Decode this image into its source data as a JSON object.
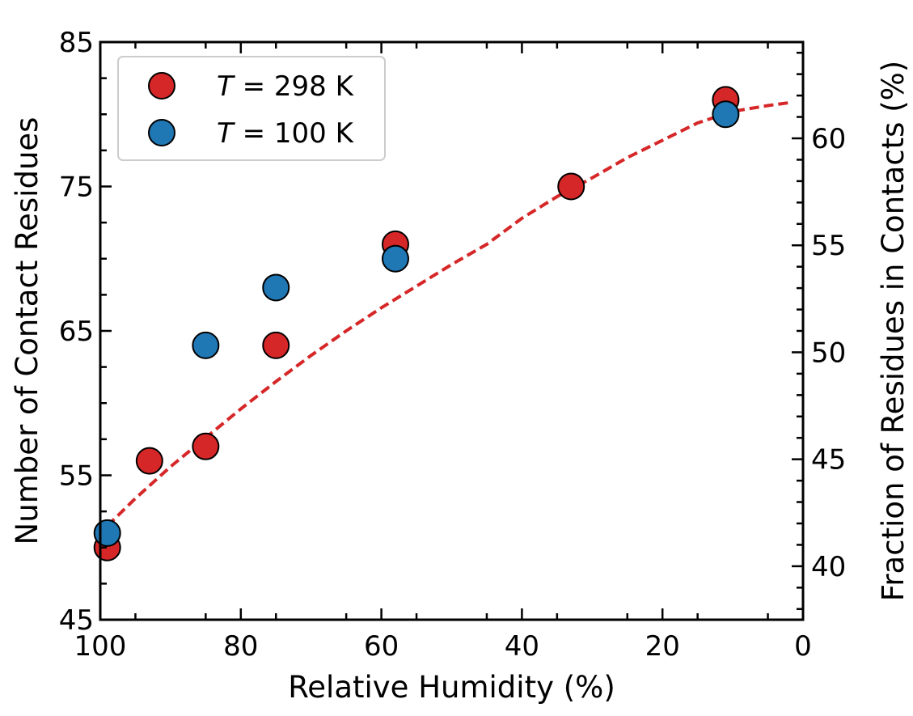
{
  "chart_data": {
    "type": "scatter",
    "xlabel": "Relative Humidity (%)",
    "ylabel": "Number of Contact Residues",
    "ylabel_right": "Fraction of Residues in Contacts (%)",
    "xlim": [
      100,
      0
    ],
    "ylim": [
      45,
      85
    ],
    "ylim_right": [
      37.5,
      64.5
    ],
    "x_ticks": [
      "100",
      "80",
      "60",
      "40",
      "20",
      "0"
    ],
    "x_tick_values": [
      100,
      80,
      60,
      40,
      20,
      0
    ],
    "y_ticks": [
      "45",
      "55",
      "65",
      "75",
      "85"
    ],
    "y_tick_values": [
      45,
      55,
      65,
      75,
      85
    ],
    "y_right_ticks": [
      "40",
      "45",
      "50",
      "55",
      "60"
    ],
    "y_right_tick_values": [
      40,
      45,
      50,
      55,
      60
    ],
    "grid": false,
    "legend_position": "top-left",
    "series": [
      {
        "name_prefix": "T",
        "name_suffix": " = 298 K",
        "color": "#d62728",
        "x": [
          99,
          93,
          85,
          75,
          58,
          33,
          11
        ],
        "y": [
          50,
          56,
          57,
          64,
          71,
          75,
          81
        ]
      },
      {
        "name_prefix": "T",
        "name_suffix": " = 100 K",
        "color": "#1f77b4",
        "x": [
          99,
          85,
          75,
          58,
          11
        ],
        "y": [
          51,
          64,
          68,
          70,
          80
        ]
      }
    ],
    "fit_line": {
      "style": "dashed",
      "color": "#d62728",
      "x": [
        99,
        95,
        90,
        85,
        80,
        75,
        70,
        65,
        60,
        55,
        50,
        45,
        40,
        35,
        30,
        25,
        20,
        15,
        10,
        5,
        2
      ],
      "y": [
        51.5,
        53.4,
        55.6,
        57.6,
        59.6,
        61.5,
        63.3,
        65.0,
        66.6,
        68.1,
        69.6,
        71.0,
        72.8,
        74.3,
        75.6,
        77.0,
        78.2,
        79.4,
        80.2,
        80.6,
        80.8
      ]
    }
  }
}
